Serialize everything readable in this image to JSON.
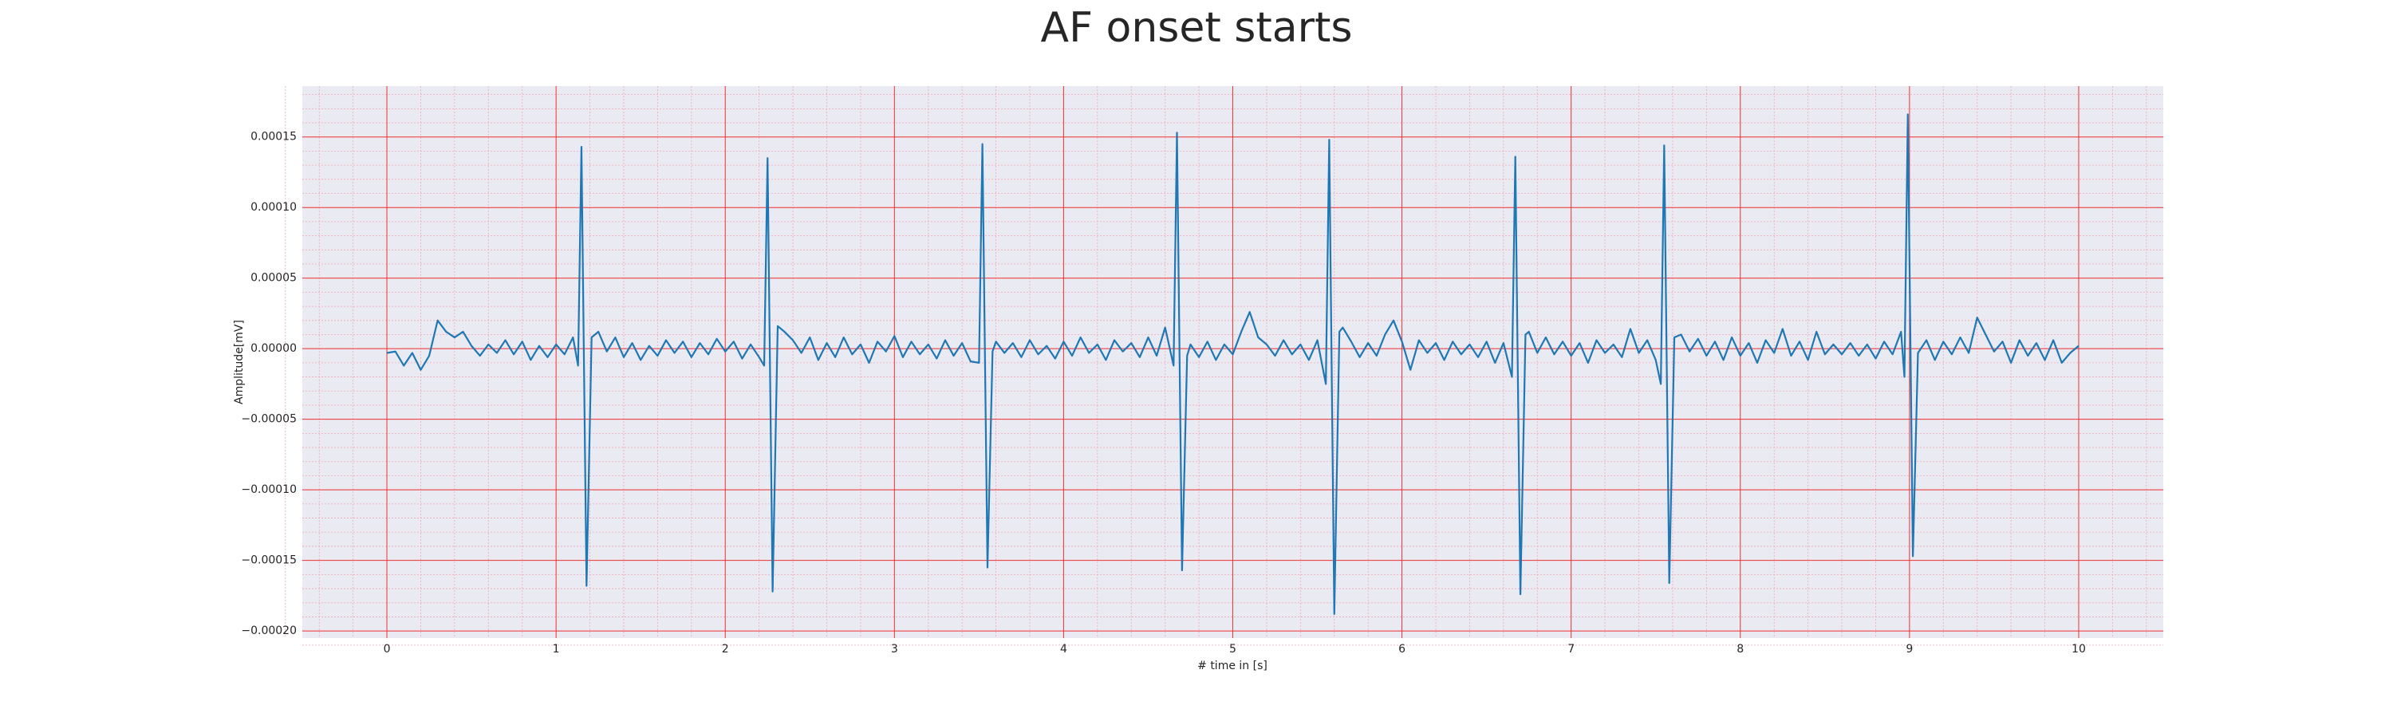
{
  "chart_data": {
    "type": "line",
    "title": "AF onset starts",
    "xlabel": "# time in [s]",
    "ylabel": "Amplitude[mV]",
    "xlim": [
      -0.5,
      10.5
    ],
    "ylim": [
      -0.000205,
      0.000186
    ],
    "xticks": [
      0,
      1,
      2,
      3,
      4,
      5,
      6,
      7,
      8,
      9,
      10
    ],
    "yticks": [
      {
        "value": -0.0002,
        "label": "−0.00020"
      },
      {
        "value": -0.00015,
        "label": "−0.00015"
      },
      {
        "value": -0.0001,
        "label": "−0.00010"
      },
      {
        "value": -5e-05,
        "label": "−0.00005"
      },
      {
        "value": 0,
        "label": "0.00000"
      },
      {
        "value": 5e-05,
        "label": "0.00005"
      },
      {
        "value": 0.0001,
        "label": "0.00010"
      },
      {
        "value": 0.00015,
        "label": "0.00015"
      }
    ],
    "grid": true,
    "minor_grid": true,
    "series": [
      {
        "color": "#1f77b4",
        "x": [
          0,
          0.05,
          0.1,
          0.15,
          0.2,
          0.25,
          0.3,
          0.35,
          0.4,
          0.45,
          0.5,
          0.55,
          0.6,
          0.65,
          0.7,
          0.75,
          0.8,
          0.85,
          0.9,
          0.95,
          1.0,
          1.05,
          1.1,
          1.13,
          1.15,
          1.18,
          1.21,
          1.25,
          1.3,
          1.35,
          1.4,
          1.45,
          1.5,
          1.55,
          1.6,
          1.65,
          1.7,
          1.75,
          1.8,
          1.85,
          1.9,
          1.95,
          2.0,
          2.05,
          2.1,
          2.15,
          2.2,
          2.23,
          2.25,
          2.28,
          2.31,
          2.35,
          2.4,
          2.45,
          2.5,
          2.55,
          2.6,
          2.65,
          2.7,
          2.75,
          2.8,
          2.85,
          2.9,
          2.95,
          3.0,
          3.05,
          3.1,
          3.15,
          3.2,
          3.25,
          3.3,
          3.35,
          3.4,
          3.45,
          3.5,
          3.52,
          3.55,
          3.58,
          3.6,
          3.65,
          3.7,
          3.75,
          3.8,
          3.85,
          3.9,
          3.95,
          4.0,
          4.05,
          4.1,
          4.15,
          4.2,
          4.25,
          4.3,
          4.35,
          4.4,
          4.45,
          4.5,
          4.55,
          4.6,
          4.65,
          4.67,
          4.7,
          4.73,
          4.75,
          4.8,
          4.85,
          4.9,
          4.95,
          5.0,
          5.05,
          5.1,
          5.15,
          5.2,
          5.25,
          5.3,
          5.35,
          5.4,
          5.45,
          5.5,
          5.55,
          5.57,
          5.6,
          5.63,
          5.65,
          5.7,
          5.75,
          5.8,
          5.85,
          5.9,
          5.95,
          6.0,
          6.05,
          6.1,
          6.15,
          6.2,
          6.25,
          6.3,
          6.35,
          6.4,
          6.45,
          6.5,
          6.55,
          6.6,
          6.65,
          6.67,
          6.7,
          6.73,
          6.75,
          6.8,
          6.85,
          6.9,
          6.95,
          7.0,
          7.05,
          7.1,
          7.15,
          7.2,
          7.25,
          7.3,
          7.35,
          7.4,
          7.45,
          7.5,
          7.53,
          7.55,
          7.58,
          7.61,
          7.65,
          7.7,
          7.75,
          7.8,
          7.85,
          7.9,
          7.95,
          8.0,
          8.05,
          8.1,
          8.15,
          8.2,
          8.25,
          8.3,
          8.35,
          8.4,
          8.45,
          8.5,
          8.55,
          8.6,
          8.65,
          8.7,
          8.75,
          8.8,
          8.85,
          8.9,
          8.95,
          8.97,
          8.99,
          9.02,
          9.05,
          9.1,
          9.15,
          9.2,
          9.25,
          9.3,
          9.35,
          9.4,
          9.45,
          9.5,
          9.55,
          9.6,
          9.65,
          9.7,
          9.75,
          9.8,
          9.85,
          9.9,
          9.95,
          10.0
        ],
        "values": [
          -3e-06,
          -2e-06,
          -1.2e-05,
          -3e-06,
          -1.5e-05,
          -5e-06,
          2e-05,
          1.2e-05,
          8e-06,
          1.2e-05,
          2e-06,
          -5e-06,
          3e-06,
          -3e-06,
          6e-06,
          -4e-06,
          5e-06,
          -8e-06,
          2e-06,
          -6e-06,
          3e-06,
          -4e-06,
          8e-06,
          -1.2e-05,
          0.000143,
          -0.000168,
          8e-06,
          1.2e-05,
          -2e-06,
          8e-06,
          -6e-06,
          4e-06,
          -8e-06,
          2e-06,
          -5e-06,
          6e-06,
          -3e-06,
          5e-06,
          -6e-06,
          4e-06,
          -4e-06,
          7e-06,
          -2e-06,
          5e-06,
          -7e-06,
          3e-06,
          -6e-06,
          -1.2e-05,
          0.000135,
          -0.000172,
          1.6e-05,
          1.2e-05,
          6e-06,
          -3e-06,
          8e-06,
          -8e-06,
          4e-06,
          -6e-06,
          8e-06,
          -4e-06,
          3e-06,
          -1e-05,
          5e-06,
          -2e-06,
          9e-06,
          -6e-06,
          5e-06,
          -4e-06,
          3e-06,
          -7e-06,
          6e-06,
          -5e-06,
          4e-06,
          -9e-06,
          -1e-05,
          0.000145,
          -0.000155,
          -2e-06,
          5e-06,
          -3e-06,
          4e-06,
          -6e-06,
          6e-06,
          -4e-06,
          2e-06,
          -7e-06,
          5e-06,
          -5e-06,
          8e-06,
          -3e-06,
          3e-06,
          -8e-06,
          6e-06,
          -2e-06,
          4e-06,
          -6e-06,
          8e-06,
          -5e-06,
          1.5e-05,
          -1.2e-05,
          0.000153,
          -0.000157,
          -5e-06,
          3e-06,
          -6e-06,
          5e-06,
          -8e-06,
          3e-06,
          -4e-06,
          1.2e-05,
          2.6e-05,
          8e-06,
          3e-06,
          -5e-06,
          6e-06,
          -4e-06,
          3e-06,
          -8e-06,
          6e-06,
          -2.5e-05,
          0.000148,
          -0.000188,
          1.2e-05,
          1.5e-05,
          5e-06,
          -6e-06,
          4e-06,
          -5e-06,
          1e-05,
          2e-05,
          5e-06,
          -1.5e-05,
          6e-06,
          -3e-06,
          4e-06,
          -8e-06,
          5e-06,
          -4e-06,
          3e-06,
          -6e-06,
          5e-06,
          -1e-05,
          4e-06,
          -2e-05,
          0.000136,
          -0.000174,
          1e-05,
          1.2e-05,
          -3e-06,
          8e-06,
          -4e-06,
          5e-06,
          -5e-06,
          4e-06,
          -1e-05,
          6e-06,
          -3e-06,
          3e-06,
          -6e-06,
          1.4e-05,
          -3e-06,
          6e-06,
          -8e-06,
          -2.5e-05,
          0.000144,
          -0.000166,
          8e-06,
          1e-05,
          -2e-06,
          7e-06,
          -5e-06,
          5e-06,
          -8e-06,
          8e-06,
          -5e-06,
          4e-06,
          -1e-05,
          6e-06,
          -3e-06,
          1.4e-05,
          -5e-06,
          5e-06,
          -8e-06,
          1.2e-05,
          -4e-06,
          3e-06,
          -4e-06,
          4e-06,
          -5e-06,
          3e-06,
          -7e-06,
          5e-06,
          -4e-06,
          1.2e-05,
          -2e-05,
          0.000166,
          -0.000147,
          -3e-06,
          6e-06,
          -8e-06,
          5e-06,
          -4e-06,
          8e-06,
          -3e-06,
          2.2e-05,
          1e-05,
          -2e-06,
          5e-06,
          -1e-05,
          6e-06,
          -5e-06,
          4e-06,
          -8e-06,
          6e-06,
          -1e-05,
          -3e-06,
          2e-06
        ]
      }
    ]
  }
}
